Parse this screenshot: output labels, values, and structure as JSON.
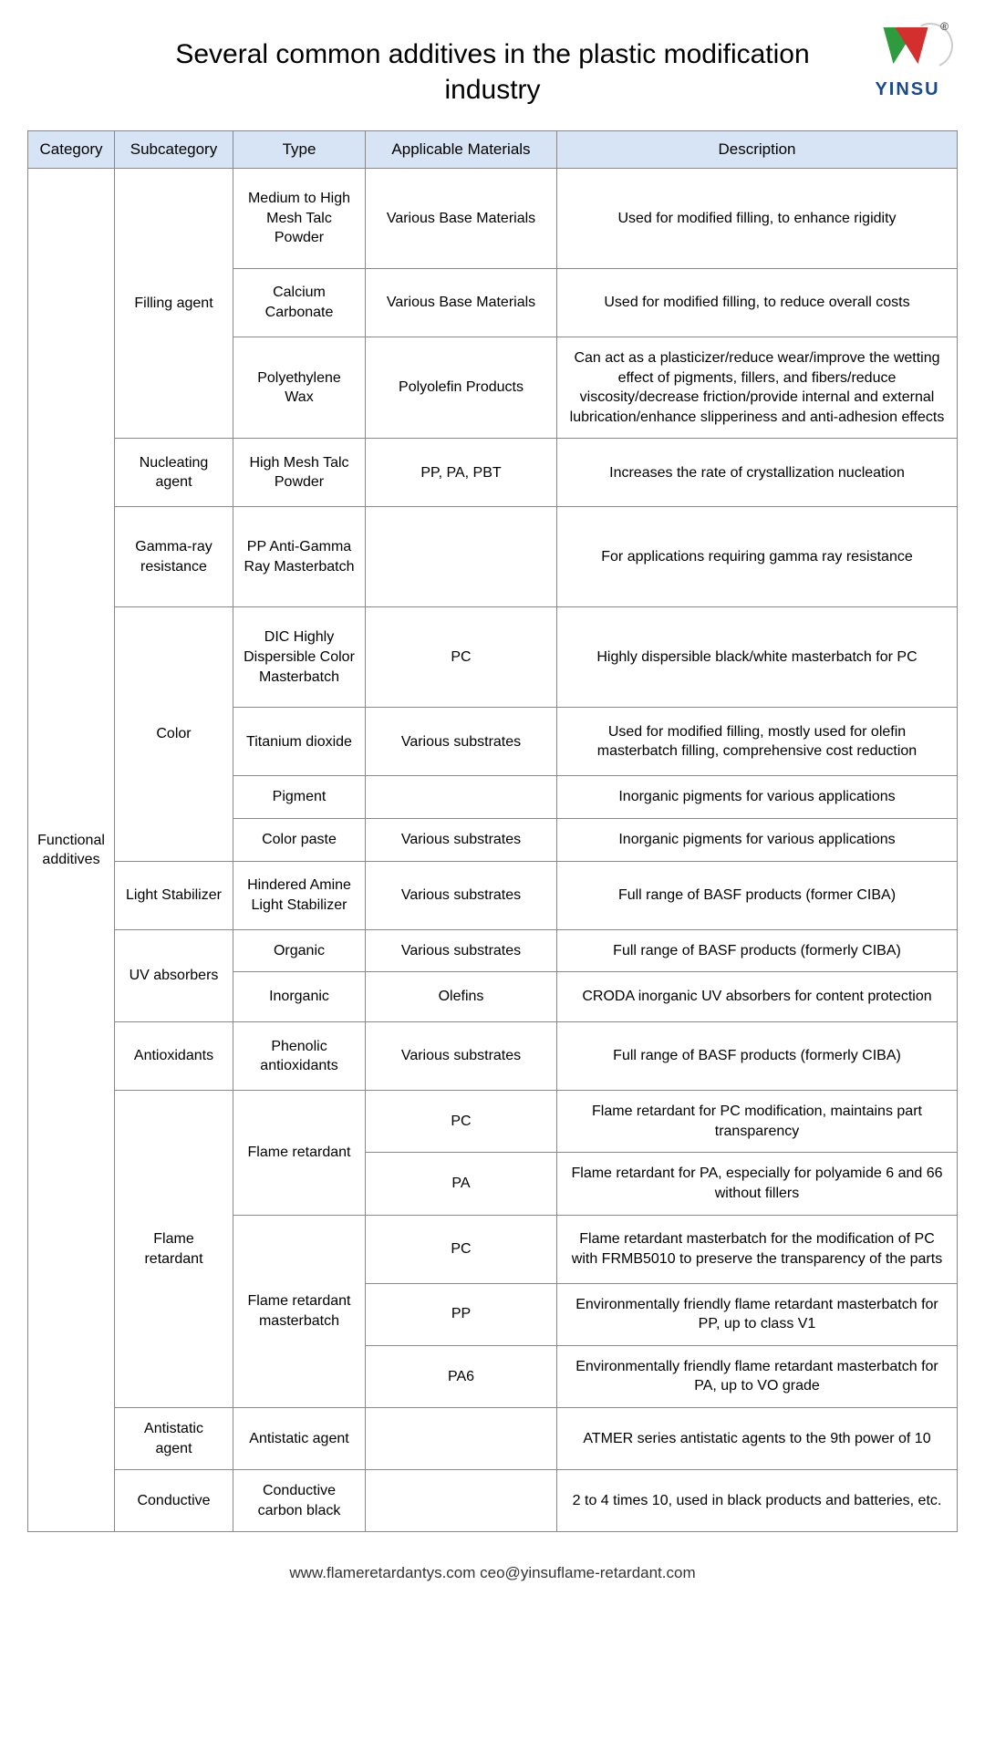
{
  "title": "Several common additives in the plastic modification industry",
  "brand": "YINSU",
  "columns": [
    "Category",
    "Subcategory",
    "Type",
    "Applicable Materials",
    "Description"
  ],
  "category": "Functional additives",
  "rows": [
    {
      "sub": "Filling agent",
      "subspan": 3,
      "type": "Medium to High Mesh Talc Powder",
      "mat": "Various Base Materials",
      "desc": "Used for modified filling, to enhance rigidity",
      "h": "tall"
    },
    {
      "type": "Calcium Carbonate",
      "mat": "Various Base Materials",
      "desc": "Used for modified filling, to reduce overall costs",
      "h": "med"
    },
    {
      "type": "Polyethylene Wax",
      "mat": "Polyolefin Products",
      "desc": "Can act as a plasticizer/reduce wear/improve the wetting effect of pigments, fillers, and fibers/reduce viscosity/decrease friction/provide internal and external lubrication/enhance slipperiness and anti-adhesion effects",
      "h": "tall"
    },
    {
      "sub": "Nucleating agent",
      "subspan": 1,
      "type": "High Mesh Talc Powder",
      "mat": "PP, PA, PBT",
      "desc": "Increases the rate of crystallization nucleation",
      "h": "med"
    },
    {
      "sub": "Gamma-ray resistance",
      "subspan": 1,
      "type": "PP Anti-Gamma Ray Masterbatch",
      "mat": "",
      "desc": "For applications requiring gamma ray resistance",
      "h": "tall"
    },
    {
      "sub": "Color",
      "subspan": 4,
      "type": "DIC Highly Dispersible Color Masterbatch",
      "mat": "PC",
      "desc": "Highly dispersible black/white masterbatch for PC",
      "h": "tall"
    },
    {
      "type": "Titanium dioxide",
      "mat": "Various substrates",
      "desc": "Used for modified filling, mostly used for olefin masterbatch filling, comprehensive cost reduction",
      "h": "med"
    },
    {
      "type": "Pigment",
      "mat": "",
      "desc": "Inorganic pigments for various applications",
      "h": "vshort"
    },
    {
      "type": "Color paste",
      "mat": "Various substrates",
      "desc": "Inorganic pigments for various applications",
      "h": "vshort"
    },
    {
      "sub": "Light Stabilizer",
      "subspan": 1,
      "type": "Hindered Amine Light Stabilizer",
      "mat": "Various substrates",
      "desc": "Full range of BASF products (former CIBA)",
      "h": "med"
    },
    {
      "sub": "UV absorbers",
      "subspan": 2,
      "type": "Organic",
      "mat": "Various substrates",
      "desc": "Full range of BASF products (formerly CIBA)",
      "h": "vshort"
    },
    {
      "type": "Inorganic",
      "mat": "Olefins",
      "desc": "CRODA inorganic UV absorbers for content protection",
      "h": "short"
    },
    {
      "sub": "Antioxidants",
      "subspan": 1,
      "type": "Phenolic antioxidants",
      "mat": "Various substrates",
      "desc": "Full range of BASF products (formerly CIBA)",
      "h": "med"
    },
    {
      "sub": "Flame retardant",
      "subspan": 5,
      "type": "Flame retardant",
      "typespan": 2,
      "mat": "PC",
      "desc": "Flame retardant for PC modification, maintains part transparency",
      "h": "short"
    },
    {
      "mat": "PA",
      "desc": "Flame retardant for PA, especially for polyamide 6 and 66 without fillers",
      "h": "short"
    },
    {
      "type": "Flame retardant masterbatch",
      "typespan": 3,
      "mat": "PC",
      "desc": "Flame retardant masterbatch for the modification of PC with FRMB5010 to preserve the transparency of the parts",
      "h": "med"
    },
    {
      "mat": "PP",
      "desc": "Environmentally friendly flame retardant masterbatch for PP, up to class V1",
      "h": "short"
    },
    {
      "mat": "PA6",
      "desc": "Environmentally friendly flame retardant masterbatch for PA, up to VO grade",
      "h": "short"
    },
    {
      "sub": "Antistatic agent",
      "subspan": 1,
      "type": "Antistatic agent",
      "mat": "",
      "desc": "ATMER series antistatic agents to the 9th power of 10",
      "h": "short"
    },
    {
      "sub": "Conductive",
      "subspan": 1,
      "type": "Conductive carbon black",
      "mat": "",
      "desc": "2 to 4 times 10, used in black products and batteries, etc.",
      "h": "short"
    }
  ],
  "footer": "www.flameretardantys.com   ceo@yinsuflame-retardant.com",
  "colors": {
    "header_bg": "#d6e4f5",
    "border": "#888888",
    "logo_green": "#2e9b3f",
    "logo_red": "#d32f2f",
    "logo_blue": "#1a4a8a"
  }
}
